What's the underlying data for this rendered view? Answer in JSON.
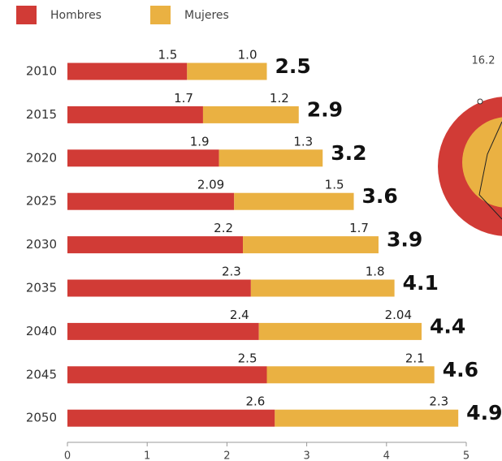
{
  "chart_data": {
    "type": "bar",
    "orientation": "horizontal",
    "stacked": true,
    "categories": [
      "2010",
      "2015",
      "2020",
      "2025",
      "2030",
      "2035",
      "2040",
      "2045",
      "2050"
    ],
    "series": [
      {
        "name": "Hombres",
        "color": "#d13b36",
        "values": [
          1.5,
          1.7,
          1.9,
          2.09,
          2.2,
          2.3,
          2.4,
          2.5,
          2.6
        ]
      },
      {
        "name": "Mujeres",
        "color": "#eab142",
        "values": [
          1.0,
          1.2,
          1.3,
          1.5,
          1.7,
          1.8,
          2.04,
          2.1,
          2.3
        ],
        "value_labels": [
          "1.0",
          "1.2",
          "1.3",
          "1.5",
          "1.7",
          "1.8",
          "2.04",
          "2.1",
          "2.3"
        ]
      }
    ],
    "totals": [
      2.5,
      2.9,
      3.2,
      3.6,
      3.9,
      4.1,
      4.4,
      4.6,
      4.9
    ],
    "xlim": [
      0,
      5
    ],
    "xticks": [
      0,
      1,
      2,
      3,
      4,
      5
    ],
    "annotation": "16.2"
  }
}
